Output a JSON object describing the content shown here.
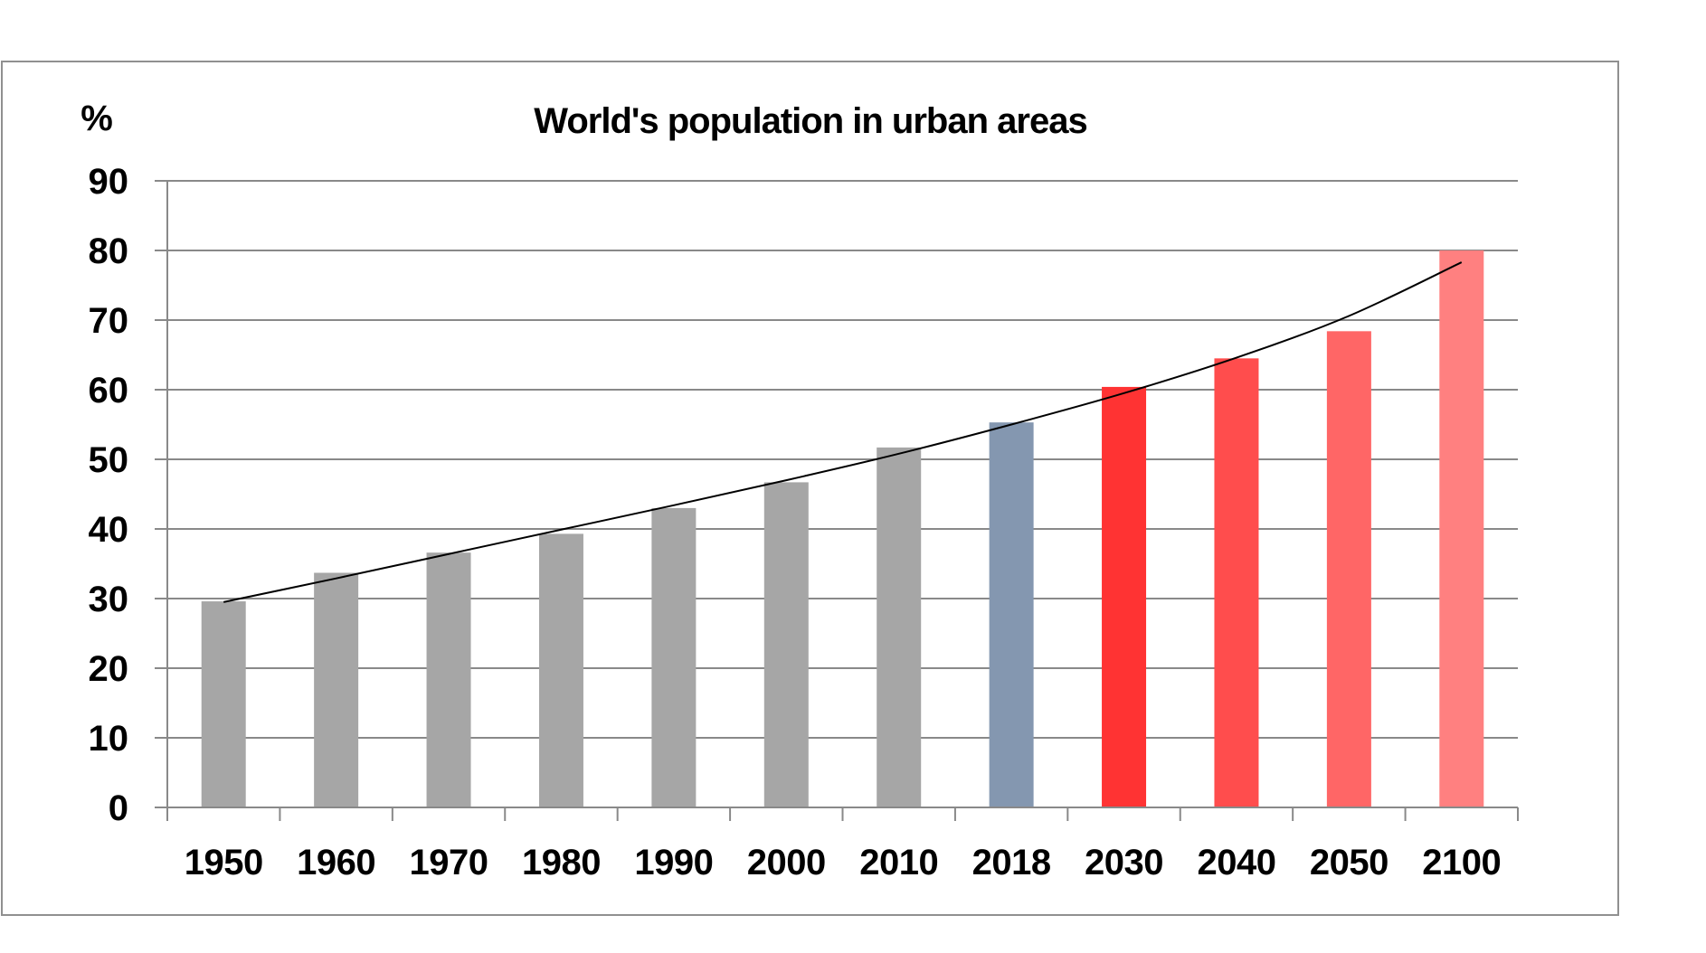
{
  "chart_data": {
    "type": "bar",
    "title": "World's population in urban areas",
    "ylabel": "%",
    "xlabel": "",
    "ylim": [
      0,
      90
    ],
    "yticks": [
      0,
      10,
      20,
      30,
      40,
      50,
      60,
      70,
      80,
      90
    ],
    "grid": true,
    "legend": "none",
    "categories": [
      "1950",
      "1960",
      "1970",
      "1980",
      "1990",
      "2000",
      "2010",
      "2018",
      "2030",
      "2040",
      "2050",
      "2100"
    ],
    "values": [
      29.6,
      33.7,
      36.6,
      39.3,
      43.0,
      46.7,
      51.7,
      55.3,
      60.4,
      64.5,
      68.4,
      80.0
    ],
    "bar_colors": [
      "#a6a6a6",
      "#a6a6a6",
      "#a6a6a6",
      "#a6a6a6",
      "#a6a6a6",
      "#a6a6a6",
      "#a6a6a6",
      "#8497b0",
      "#ff3333",
      "#ff4d4d",
      "#ff6666",
      "#ff8080"
    ],
    "trendline": {
      "type": "exponential",
      "values": [
        29.5,
        32.9,
        36.4,
        39.9,
        43.4,
        47.0,
        50.8,
        55.0,
        59.5,
        64.6,
        70.6,
        78.3
      ],
      "color": "#000000"
    },
    "gridline_color": "#898989",
    "frame_color": "#909090"
  }
}
